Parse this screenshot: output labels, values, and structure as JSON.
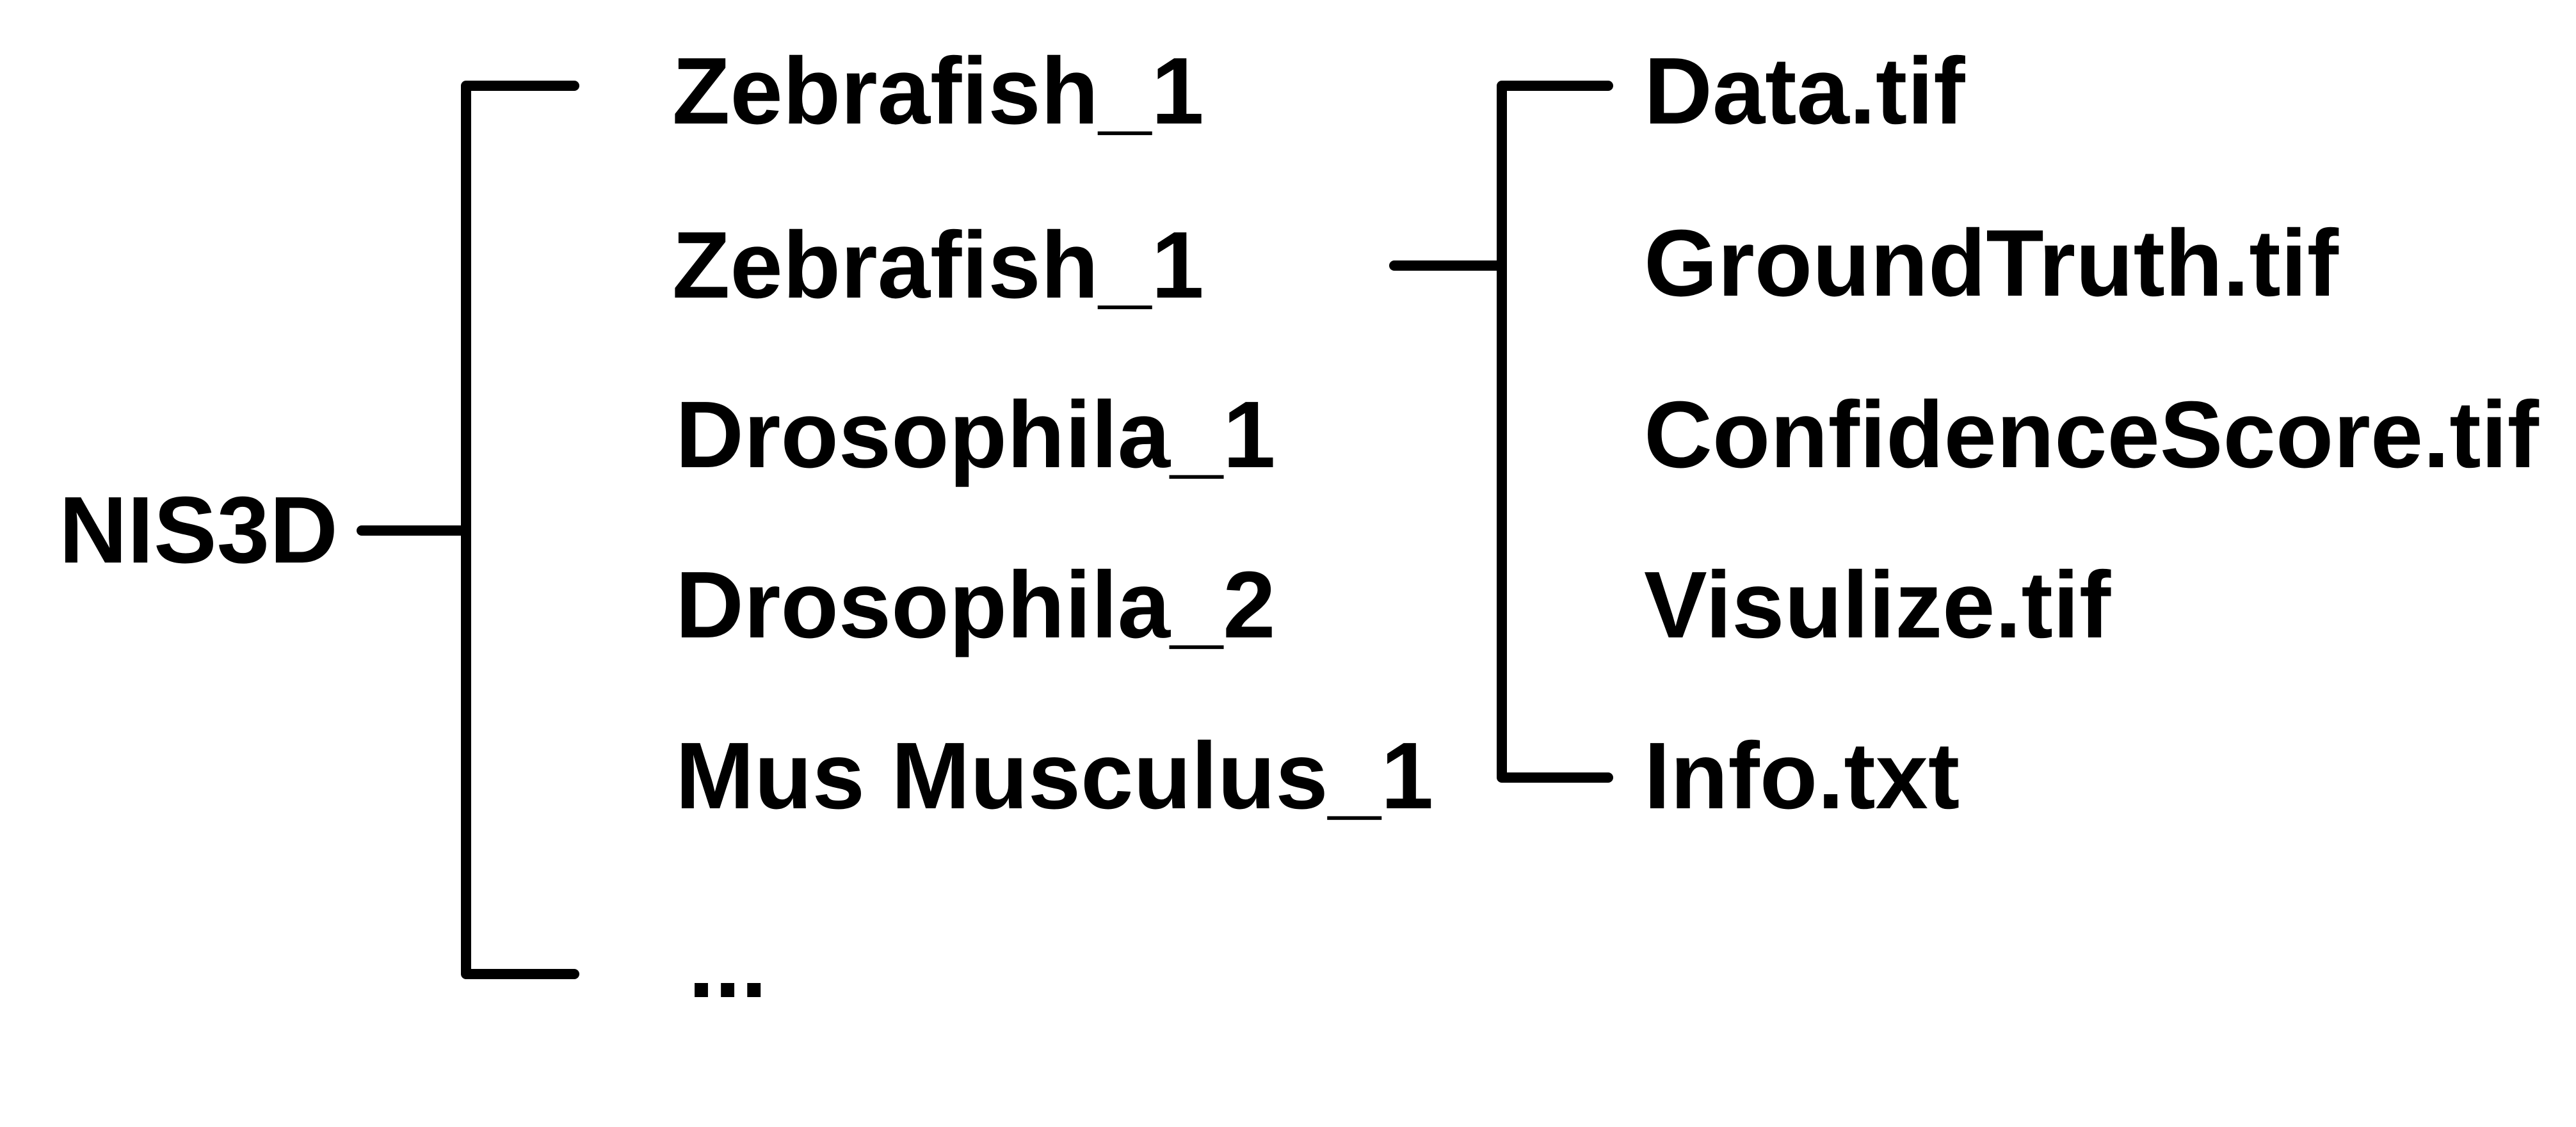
{
  "diagram": {
    "type": "directory-tree",
    "root": {
      "label": "NIS3D"
    },
    "datasets": [
      {
        "label": "Zebrafish_1"
      },
      {
        "label": "Zebrafish_1"
      },
      {
        "label": "Drosophila_1"
      },
      {
        "label": "Drosophila_2"
      },
      {
        "label": "Mus Musculus_1"
      },
      {
        "label": "..."
      }
    ],
    "files": [
      {
        "label": "Data.tif"
      },
      {
        "label": "GroundTruth.tif"
      },
      {
        "label": "ConfidenceScore.tif"
      },
      {
        "label": "Visulize.tif"
      },
      {
        "label": "Info.txt"
      }
    ],
    "line_color": "#000000",
    "text_color": "#000000"
  }
}
